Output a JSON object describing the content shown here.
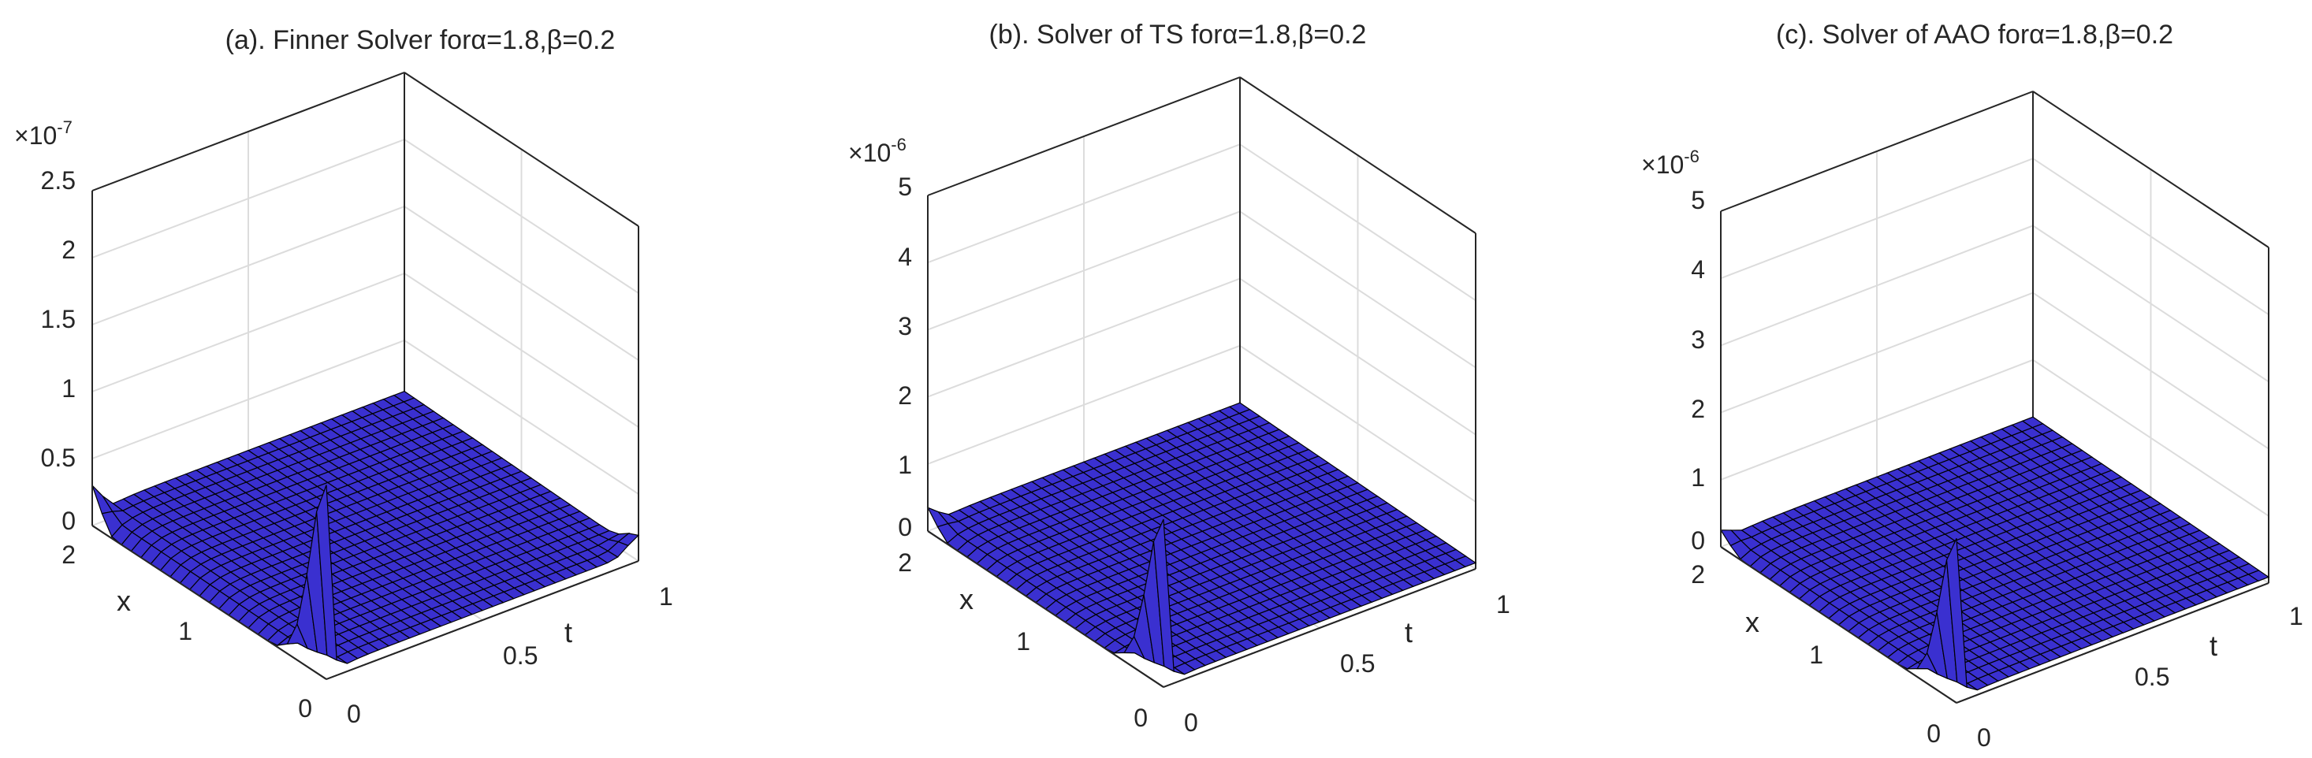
{
  "figure": {
    "surface_color": "#3a30d0",
    "edge_color": "#000000",
    "grid_color": "#dcdcdc",
    "box_color": "#262626"
  },
  "chart_data": [
    {
      "type": "surface",
      "title_prefix": "(a). Finner Solver for",
      "title_params": "α=1.8,β=0.2",
      "xlabel": "t",
      "ylabel": "x",
      "zlabel": "",
      "x_ticks": [
        "0",
        "0.5",
        "1"
      ],
      "y_ticks": [
        "0",
        "1",
        "2"
      ],
      "z_ticks": [
        "0",
        "0.5",
        "1",
        "1.5",
        "2",
        "2.5"
      ],
      "z_exponent_base": "×10",
      "z_exponent": "-7",
      "xlim": [
        0,
        1
      ],
      "ylim": [
        0,
        2
      ],
      "zlim": [
        0,
        2.5e-07
      ],
      "grid": true,
      "features": {
        "spike": {
          "t": 0,
          "x": 0.0,
          "z": 1.45e-07
        },
        "edge_bump": {
          "t": 0,
          "x": 2.0,
          "z": 3e-08
        },
        "plateau_level": 1.2e-08,
        "far_edge_tick": {
          "t": 1,
          "x": 0.0,
          "z": 1.2e-08
        }
      }
    },
    {
      "type": "surface",
      "title_prefix": "(b). Solver of TS for",
      "title_params": "α=1.8,β=0.2",
      "xlabel": "t",
      "ylabel": "x",
      "zlabel": "",
      "x_ticks": [
        "0",
        "0.5",
        "1"
      ],
      "y_ticks": [
        "0",
        "1",
        "2"
      ],
      "z_ticks": [
        "0",
        "1",
        "2",
        "3",
        "4",
        "5"
      ],
      "z_exponent_base": "×10",
      "z_exponent": "-6",
      "xlim": [
        0,
        1
      ],
      "ylim": [
        0,
        2
      ],
      "zlim": [
        0,
        5e-06
      ],
      "grid": true,
      "features": {
        "spike": {
          "t": 0,
          "x": 0.0,
          "z": 2.5e-06
        },
        "edge_bump": {
          "t": 0,
          "x": 2.0,
          "z": 3.5e-07
        },
        "plateau_level": 1.5e-07
      }
    },
    {
      "type": "surface",
      "title_prefix": "(c). Solver of AAO for",
      "title_params": "α=1.8,β=0.2",
      "xlabel": "t",
      "ylabel": "x",
      "zlabel": "",
      "x_ticks": [
        "0",
        "0.5",
        "1"
      ],
      "y_ticks": [
        "0",
        "1",
        "2"
      ],
      "z_ticks": [
        "0",
        "1",
        "2",
        "3",
        "4",
        "5"
      ],
      "z_exponent_base": "×10",
      "z_exponent": "-6",
      "xlim": [
        0,
        1
      ],
      "ylim": [
        0,
        2
      ],
      "zlim": [
        0,
        5e-06
      ],
      "grid": true,
      "features": {
        "spike": {
          "t": 0,
          "x": 0.0,
          "z": 2.45e-06
        },
        "edge_bump": {
          "t": 0,
          "x": 2.0,
          "z": 2.5e-07
        },
        "plateau_level": 1.5e-07
      }
    }
  ]
}
